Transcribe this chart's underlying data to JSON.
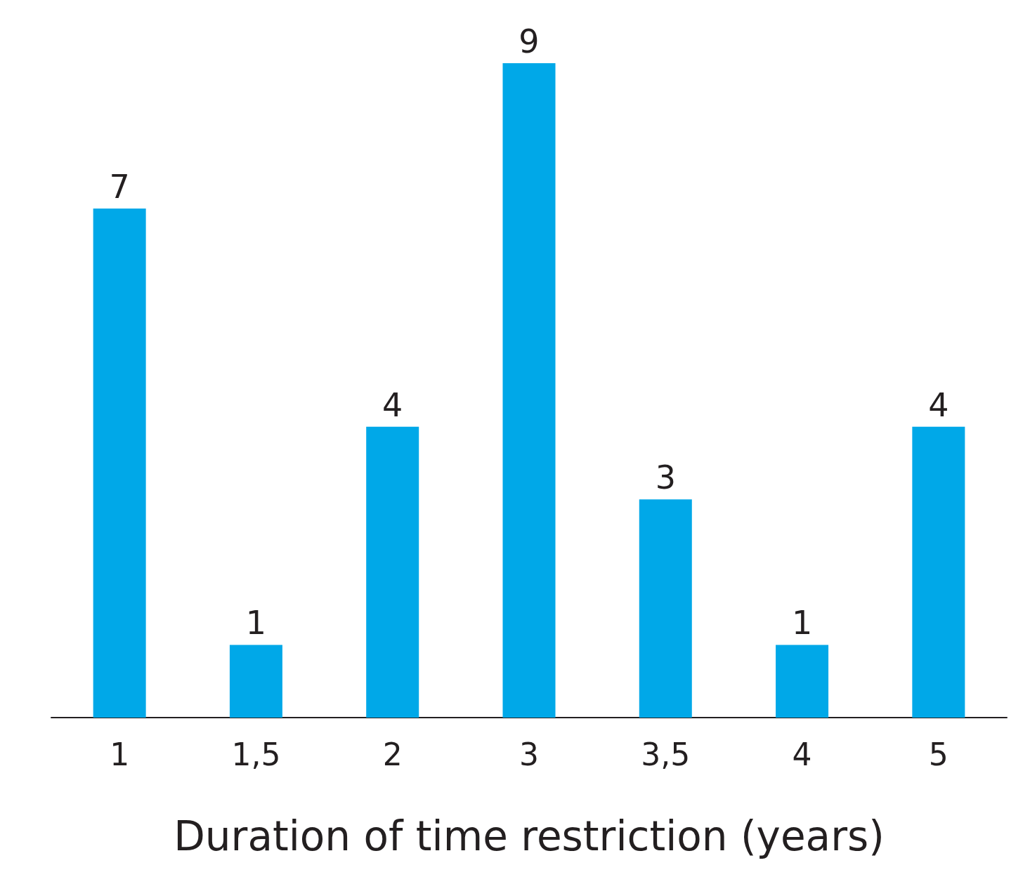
{
  "chart_data": {
    "type": "bar",
    "xlabel": "Duration of time restriction (years)",
    "categories": [
      "1",
      "1,5",
      "2",
      "3",
      "3,5",
      "4",
      "5"
    ],
    "values": [
      7,
      1,
      4,
      9,
      3,
      1,
      4
    ],
    "color": "#00a8e8",
    "data_labels": true
  }
}
